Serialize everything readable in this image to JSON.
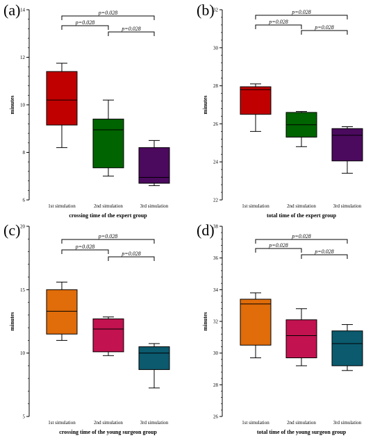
{
  "chart_data": [
    {
      "panel_label": "(a)",
      "type": "box",
      "categories": [
        "1st simulation",
        "2nd simulation",
        "3rd simulation"
      ],
      "colors": [
        "#c00000",
        "#006400",
        "#4b0a5e"
      ],
      "xlabel": "crossing time of the expert group",
      "ylabel": "minutes",
      "ylim": [
        6,
        14
      ],
      "yticks": [
        6,
        8,
        10,
        12,
        14
      ],
      "boxes": [
        {
          "min": 8.2,
          "q1": 9.15,
          "median": 10.2,
          "q3": 11.4,
          "max": 11.75
        },
        {
          "min": 7.0,
          "q1": 7.35,
          "median": 8.95,
          "q3": 9.4,
          "max": 10.2
        },
        {
          "min": 6.6,
          "q1": 6.7,
          "median": 6.95,
          "q3": 8.2,
          "max": 8.5
        }
      ],
      "brackets": [
        {
          "between": [
            0,
            2
          ],
          "label": "p=0.028",
          "level": 2
        },
        {
          "between": [
            0,
            1
          ],
          "label": "p=0.028",
          "level": 1
        },
        {
          "between": [
            1,
            2
          ],
          "label": "p=0.028",
          "level": 0
        }
      ]
    },
    {
      "panel_label": "(b)",
      "type": "box",
      "categories": [
        "1st simulation",
        "2nd simulation",
        "3rd simulation"
      ],
      "colors": [
        "#c00000",
        "#006400",
        "#4b0a5e"
      ],
      "xlabel": "total time of the expert group",
      "ylabel": "minutes",
      "ylim": [
        22,
        32
      ],
      "yticks": [
        22,
        24,
        26,
        28,
        30,
        32
      ],
      "boxes": [
        {
          "min": 25.6,
          "q1": 26.5,
          "median": 27.8,
          "q3": 27.95,
          "max": 28.1
        },
        {
          "min": 24.8,
          "q1": 25.3,
          "median": 25.95,
          "q3": 26.6,
          "max": 26.65
        },
        {
          "min": 23.4,
          "q1": 24.05,
          "median": 25.4,
          "q3": 25.75,
          "max": 25.85
        }
      ],
      "brackets": [
        {
          "between": [
            0,
            2
          ],
          "label": "p=0.028",
          "level": 2
        },
        {
          "between": [
            0,
            1
          ],
          "label": "p=0.028",
          "level": 1
        },
        {
          "between": [
            1,
            2
          ],
          "label": "p=0.028",
          "level": 0
        }
      ]
    },
    {
      "panel_label": "(c)",
      "type": "box",
      "categories": [
        "1st simulation",
        "2nd simulation",
        "3rd simulation"
      ],
      "colors": [
        "#e06c0a",
        "#c2124f",
        "#0b5a6e"
      ],
      "xlabel": "crossing time of the young surgeon group",
      "ylabel": "minutes",
      "ylim": [
        5,
        20
      ],
      "yticks": [
        5,
        10,
        15,
        20
      ],
      "boxes": [
        {
          "min": 11.0,
          "q1": 11.5,
          "median": 13.3,
          "q3": 15.0,
          "max": 15.6
        },
        {
          "min": 9.8,
          "q1": 10.1,
          "median": 11.9,
          "q3": 12.7,
          "max": 12.85
        },
        {
          "min": 7.25,
          "q1": 8.7,
          "median": 10.0,
          "q3": 10.5,
          "max": 10.75
        }
      ],
      "brackets": [
        {
          "between": [
            0,
            2
          ],
          "label": "p=0.028",
          "level": 2
        },
        {
          "between": [
            0,
            1
          ],
          "label": "p=0.028",
          "level": 1
        },
        {
          "between": [
            1,
            2
          ],
          "label": "p=0.028",
          "level": 0
        }
      ]
    },
    {
      "panel_label": "(d)",
      "type": "box",
      "categories": [
        "1st simulation",
        "2nd simulation",
        "3rd simulation"
      ],
      "colors": [
        "#e06c0a",
        "#c2124f",
        "#0b5a6e"
      ],
      "xlabel": "total time of the young surgeon group",
      "ylabel": "minutes",
      "ylim": [
        26,
        38
      ],
      "yticks": [
        26,
        28,
        30,
        32,
        34,
        36,
        38
      ],
      "boxes": [
        {
          "min": 29.7,
          "q1": 30.5,
          "median": 33.1,
          "q3": 33.4,
          "max": 33.8
        },
        {
          "min": 29.2,
          "q1": 29.7,
          "median": 31.1,
          "q3": 32.1,
          "max": 32.8
        },
        {
          "min": 28.9,
          "q1": 29.2,
          "median": 30.6,
          "q3": 31.4,
          "max": 31.8
        }
      ],
      "brackets": [
        {
          "between": [
            0,
            2
          ],
          "label": "p=0.028",
          "level": 2
        },
        {
          "between": [
            0,
            1
          ],
          "label": "p=0.028",
          "level": 1
        },
        {
          "between": [
            1,
            2
          ],
          "label": "p=0.028",
          "level": 0
        }
      ]
    }
  ]
}
